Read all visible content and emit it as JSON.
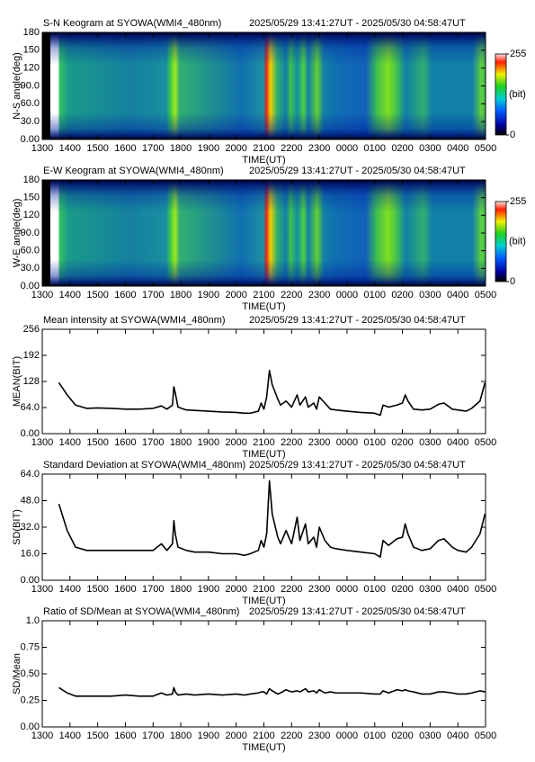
{
  "chart_data": [
    {
      "type": "keogram",
      "title": "S-N Keogram at SYOWA(WMI4_480nm)",
      "subtitle": "2025/05/29 13:41:27UT - 2025/05/30 04:58:47UT",
      "xlabel": "TIME(UT)",
      "ylabel": "N-S angle(deg)",
      "xlim": [
        13,
        29
      ],
      "xticks": [
        {
          "value": 13,
          "label": "1300"
        },
        {
          "value": 14,
          "label": "1400"
        },
        {
          "value": 15,
          "label": "1500"
        },
        {
          "value": 16,
          "label": "1600"
        },
        {
          "value": 17,
          "label": "1700"
        },
        {
          "value": 18,
          "label": "1800"
        },
        {
          "value": 19,
          "label": "1900"
        },
        {
          "value": 20,
          "label": "2000"
        },
        {
          "value": 21,
          "label": "2100"
        },
        {
          "value": 22,
          "label": "2200"
        },
        {
          "value": 23,
          "label": "2300"
        },
        {
          "value": 24,
          "label": "0000"
        },
        {
          "value": 25,
          "label": "0100"
        },
        {
          "value": 26,
          "label": "0200"
        },
        {
          "value": 27,
          "label": "0300"
        },
        {
          "value": 28,
          "label": "0400"
        },
        {
          "value": 29,
          "label": "0500"
        }
      ],
      "ylim": [
        0,
        180
      ],
      "yticks": [
        {
          "value": 0,
          "label": "0.00"
        },
        {
          "value": 30,
          "label": "30.0"
        },
        {
          "value": 60,
          "label": "60.0"
        },
        {
          "value": 90,
          "label": "90.0"
        },
        120,
        150,
        180
      ],
      "colorbar": {
        "clim": [
          0,
          255
        ],
        "ticks": [
          0,
          255
        ],
        "label": "(bit)"
      }
    },
    {
      "type": "keogram",
      "title": "E-W Keogram at SYOWA(WMI4_480nm)",
      "subtitle": "2025/05/29 13:41:27UT - 2025/05/30 04:58:47UT",
      "xlabel": "TIME(UT)",
      "ylabel": "W-E angle(deg)",
      "xlim": [
        13,
        29
      ],
      "xticks": [
        {
          "value": 13,
          "label": "1300"
        },
        {
          "value": 14,
          "label": "1400"
        },
        {
          "value": 15,
          "label": "1500"
        },
        {
          "value": 16,
          "label": "1600"
        },
        {
          "value": 17,
          "label": "1700"
        },
        {
          "value": 18,
          "label": "1800"
        },
        {
          "value": 19,
          "label": "1900"
        },
        {
          "value": 20,
          "label": "2000"
        },
        {
          "value": 21,
          "label": "2100"
        },
        {
          "value": 22,
          "label": "2200"
        },
        {
          "value": 23,
          "label": "2300"
        },
        {
          "value": 24,
          "label": "0000"
        },
        {
          "value": 25,
          "label": "0100"
        },
        {
          "value": 26,
          "label": "0200"
        },
        {
          "value": 27,
          "label": "0300"
        },
        {
          "value": 28,
          "label": "0400"
        },
        {
          "value": 29,
          "label": "0500"
        }
      ],
      "ylim": [
        0,
        180
      ],
      "yticks": [
        {
          "value": 0,
          "label": "0.00"
        },
        {
          "value": 30,
          "label": "30.0"
        },
        {
          "value": 60,
          "label": "60.0"
        },
        {
          "value": 90,
          "label": "90.0"
        },
        120,
        150,
        180
      ],
      "colorbar": {
        "clim": [
          0,
          255
        ],
        "ticks": [
          0,
          255
        ],
        "label": "(bit)"
      }
    },
    {
      "type": "line",
      "title": "Mean intensity at SYOWA(WMI4_480nm)",
      "subtitle": "2025/05/29 13:41:27UT - 2025/05/30 04:58:47UT",
      "xlabel": "TIME(UT)",
      "ylabel": "MEAN(BIT)",
      "xlim": [
        13,
        29
      ],
      "xticks": [
        {
          "value": 13,
          "label": "1300"
        },
        {
          "value": 14,
          "label": "1400"
        },
        {
          "value": 15,
          "label": "1500"
        },
        {
          "value": 16,
          "label": "1600"
        },
        {
          "value": 17,
          "label": "1700"
        },
        {
          "value": 18,
          "label": "1800"
        },
        {
          "value": 19,
          "label": "1900"
        },
        {
          "value": 20,
          "label": "2000"
        },
        {
          "value": 21,
          "label": "2100"
        },
        {
          "value": 22,
          "label": "2200"
        },
        {
          "value": 23,
          "label": "2300"
        },
        {
          "value": 24,
          "label": "0000"
        },
        {
          "value": 25,
          "label": "0100"
        },
        {
          "value": 26,
          "label": "0200"
        },
        {
          "value": 27,
          "label": "0300"
        },
        {
          "value": 28,
          "label": "0400"
        },
        {
          "value": 29,
          "label": "0500"
        }
      ],
      "ylim": [
        0,
        256
      ],
      "yticks": [
        {
          "value": 0,
          "label": "0.00"
        },
        {
          "value": 64,
          "label": "64.0"
        },
        128,
        192,
        256
      ],
      "x": [
        13.6,
        13.9,
        14.2,
        14.6,
        15.0,
        15.5,
        16.0,
        16.5,
        17.0,
        17.3,
        17.5,
        17.7,
        17.75,
        17.8,
        17.9,
        18.2,
        18.5,
        19.0,
        19.5,
        20.0,
        20.3,
        20.5,
        20.8,
        20.9,
        21.0,
        21.1,
        21.2,
        21.3,
        21.5,
        21.6,
        21.8,
        22.0,
        22.2,
        22.3,
        22.5,
        22.6,
        22.8,
        22.9,
        23.0,
        23.2,
        23.4,
        23.6,
        24.0,
        24.5,
        25.0,
        25.2,
        25.3,
        25.5,
        25.8,
        26.0,
        26.1,
        26.2,
        26.4,
        26.7,
        27.0,
        27.3,
        27.5,
        27.8,
        28.0,
        28.3,
        28.5,
        28.8,
        28.98
      ],
      "series": [
        {
          "color": "#000000",
          "values": [
            125,
            95,
            70,
            62,
            63,
            62,
            60,
            60,
            62,
            68,
            60,
            70,
            115,
            100,
            65,
            58,
            57,
            55,
            53,
            52,
            50,
            50,
            55,
            75,
            60,
            90,
            155,
            120,
            85,
            70,
            80,
            65,
            95,
            70,
            90,
            65,
            75,
            60,
            90,
            75,
            60,
            58,
            55,
            52,
            50,
            45,
            70,
            65,
            70,
            75,
            95,
            80,
            60,
            58,
            60,
            72,
            75,
            60,
            58,
            55,
            62,
            80,
            125
          ]
        }
      ]
    },
    {
      "type": "line",
      "title": "Standard Deviation at SYOWA(WMI4_480nm)",
      "subtitle": "2025/05/29 13:41:27UT - 2025/05/30 04:58:47UT",
      "xlabel": "TIME(UT)",
      "ylabel": "SD(BIT)",
      "xlim": [
        13,
        29
      ],
      "xticks": [
        {
          "value": 13,
          "label": "1300"
        },
        {
          "value": 14,
          "label": "1400"
        },
        {
          "value": 15,
          "label": "1500"
        },
        {
          "value": 16,
          "label": "1600"
        },
        {
          "value": 17,
          "label": "1700"
        },
        {
          "value": 18,
          "label": "1800"
        },
        {
          "value": 19,
          "label": "1900"
        },
        {
          "value": 20,
          "label": "2000"
        },
        {
          "value": 21,
          "label": "2100"
        },
        {
          "value": 22,
          "label": "2200"
        },
        {
          "value": 23,
          "label": "2300"
        },
        {
          "value": 24,
          "label": "0000"
        },
        {
          "value": 25,
          "label": "0100"
        },
        {
          "value": 26,
          "label": "0200"
        },
        {
          "value": 27,
          "label": "0300"
        },
        {
          "value": 28,
          "label": "0400"
        },
        {
          "value": 29,
          "label": "0500"
        }
      ],
      "ylim": [
        0,
        64
      ],
      "yticks": [
        {
          "value": 0,
          "label": "0.00"
        },
        {
          "value": 16,
          "label": "16.0"
        },
        {
          "value": 32,
          "label": "32.0"
        },
        {
          "value": 48,
          "label": "48.0"
        },
        {
          "value": 64,
          "label": "64.0"
        }
      ],
      "x": [
        13.6,
        13.9,
        14.2,
        14.6,
        15.0,
        15.5,
        16.0,
        16.5,
        17.0,
        17.3,
        17.5,
        17.7,
        17.75,
        17.8,
        17.9,
        18.2,
        18.5,
        19.0,
        19.5,
        20.0,
        20.3,
        20.5,
        20.8,
        20.9,
        21.0,
        21.1,
        21.2,
        21.3,
        21.5,
        21.6,
        21.8,
        22.0,
        22.2,
        22.3,
        22.5,
        22.6,
        22.8,
        22.9,
        23.0,
        23.2,
        23.4,
        23.6,
        24.0,
        24.5,
        25.0,
        25.2,
        25.3,
        25.5,
        25.8,
        26.0,
        26.1,
        26.2,
        26.4,
        26.7,
        27.0,
        27.3,
        27.5,
        27.8,
        28.0,
        28.3,
        28.5,
        28.8,
        28.98
      ],
      "series": [
        {
          "color": "#000000",
          "values": [
            46,
            30,
            20,
            18,
            18,
            18,
            18,
            18,
            18,
            22,
            18,
            22,
            36,
            28,
            20,
            18,
            17,
            17,
            16,
            16,
            15,
            16,
            18,
            24,
            20,
            28,
            60,
            40,
            26,
            22,
            30,
            22,
            38,
            24,
            34,
            22,
            26,
            20,
            32,
            24,
            20,
            19,
            18,
            17,
            16,
            14,
            24,
            21,
            25,
            26,
            34,
            28,
            20,
            18,
            19,
            24,
            25,
            20,
            18,
            17,
            20,
            28,
            40
          ]
        }
      ]
    },
    {
      "type": "line",
      "title": "Ratio of SD/Mean at SYOWA(WMI4_480nm)",
      "subtitle": "2025/05/29 13:41:27UT - 2025/05/30 04:58:47UT",
      "xlabel": "TIME(UT)",
      "ylabel": "SD/Mean",
      "xlim": [
        13,
        29
      ],
      "xticks": [
        {
          "value": 13,
          "label": "1300"
        },
        {
          "value": 14,
          "label": "1400"
        },
        {
          "value": 15,
          "label": "1500"
        },
        {
          "value": 16,
          "label": "1600"
        },
        {
          "value": 17,
          "label": "1700"
        },
        {
          "value": 18,
          "label": "1800"
        },
        {
          "value": 19,
          "label": "1900"
        },
        {
          "value": 20,
          "label": "2000"
        },
        {
          "value": 21,
          "label": "2100"
        },
        {
          "value": 22,
          "label": "2200"
        },
        {
          "value": 23,
          "label": "2300"
        },
        {
          "value": 24,
          "label": "0000"
        },
        {
          "value": 25,
          "label": "0100"
        },
        {
          "value": 26,
          "label": "0200"
        },
        {
          "value": 27,
          "label": "0300"
        },
        {
          "value": 28,
          "label": "0400"
        },
        {
          "value": 29,
          "label": "0500"
        }
      ],
      "ylim": [
        0,
        1
      ],
      "yticks": [
        {
          "value": 0,
          "label": "0.00"
        },
        0.25,
        {
          "value": 0.5,
          "label": "0.50"
        },
        0.75,
        {
          "value": 1,
          "label": "1.0"
        }
      ],
      "x": [
        13.6,
        13.9,
        14.2,
        14.6,
        15.0,
        15.5,
        16.0,
        16.5,
        17.0,
        17.3,
        17.5,
        17.7,
        17.75,
        17.8,
        17.9,
        18.2,
        18.5,
        19.0,
        19.5,
        20.0,
        20.3,
        20.5,
        20.8,
        20.9,
        21.0,
        21.1,
        21.2,
        21.3,
        21.5,
        21.6,
        21.8,
        22.0,
        22.2,
        22.3,
        22.5,
        22.6,
        22.8,
        22.9,
        23.0,
        23.2,
        23.4,
        23.6,
        24.0,
        24.5,
        25.0,
        25.2,
        25.3,
        25.5,
        25.8,
        26.0,
        26.1,
        26.2,
        26.4,
        26.7,
        27.0,
        27.3,
        27.5,
        27.8,
        28.0,
        28.3,
        28.5,
        28.8,
        28.98
      ],
      "series": [
        {
          "color": "#000000",
          "values": [
            0.37,
            0.32,
            0.29,
            0.29,
            0.29,
            0.29,
            0.3,
            0.29,
            0.29,
            0.32,
            0.3,
            0.31,
            0.37,
            0.33,
            0.3,
            0.31,
            0.3,
            0.31,
            0.3,
            0.31,
            0.3,
            0.31,
            0.32,
            0.33,
            0.33,
            0.31,
            0.36,
            0.34,
            0.31,
            0.32,
            0.35,
            0.33,
            0.34,
            0.33,
            0.36,
            0.33,
            0.34,
            0.32,
            0.35,
            0.32,
            0.33,
            0.32,
            0.32,
            0.32,
            0.31,
            0.31,
            0.34,
            0.32,
            0.35,
            0.34,
            0.35,
            0.34,
            0.33,
            0.31,
            0.31,
            0.33,
            0.33,
            0.32,
            0.31,
            0.31,
            0.32,
            0.34,
            0.33
          ]
        }
      ]
    }
  ]
}
